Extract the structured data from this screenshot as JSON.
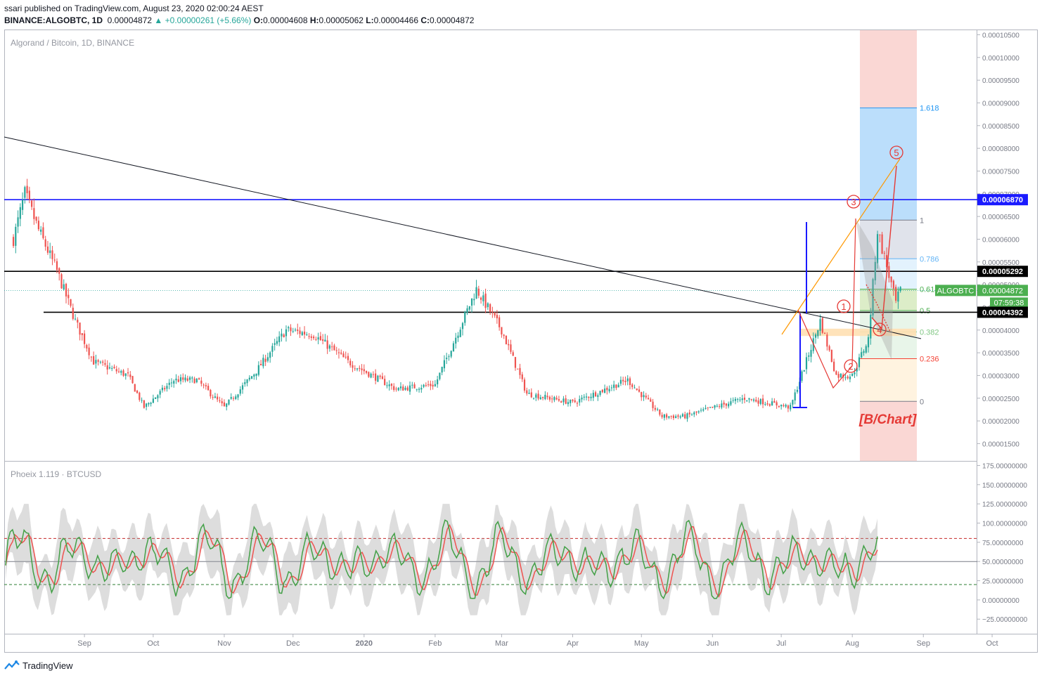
{
  "header": {
    "published": "ssari published on TradingView.com, August 23, 2020 02:00:24 AEST",
    "symbol": "BINANCE:ALGOBTC, 1D",
    "last": "0.00004872",
    "change": "▲ +0.00000261 (+5.66%)",
    "open_label": "O:",
    "open": "0.00004608",
    "high_label": "H:",
    "high": "0.00005062",
    "low_label": "L:",
    "low": "0.00004466",
    "close_label": "C:",
    "close": "0.00004872"
  },
  "main_pane": {
    "legend": "Algorand / Bitcoin, 1D, BINANCE"
  },
  "indicator_pane": {
    "legend": "Phoeix 1.119 · BTCUSD"
  },
  "footer": {
    "brand": "TradingView"
  },
  "colors": {
    "up": "#26a69a",
    "down": "#ef5350",
    "blue_level": "#1a1aff",
    "fib_blue": "#bbdefb",
    "fib_red": "#f8c9c6"
  },
  "chart_data": [
    {
      "type": "candlestick",
      "title": "Algorand / Bitcoin, 1D, BINANCE",
      "x_axis_labels": [
        "Sep",
        "Oct",
        "Nov",
        "Dec",
        "2020",
        "Feb",
        "Mar",
        "Apr",
        "May",
        "Jun",
        "Jul",
        "Aug",
        "Sep",
        "Oct"
      ],
      "y_axis_labels": [
        "0.00010500",
        "0.00010000",
        "0.00009500",
        "0.00009000",
        "0.00008500",
        "0.00008000",
        "0.00007500",
        "0.00007000",
        "0.00006500",
        "0.00006000",
        "0.00005500",
        "0.00005000",
        "0.00004500",
        "0.00004000",
        "0.00003500",
        "0.00003000",
        "0.00002500",
        "0.00002000",
        "0.00001500"
      ],
      "ylim": [
        1.12e-05,
        0.000106
      ],
      "price_tags": [
        {
          "name": "blue-level",
          "value": 6.87e-05,
          "label": "0.00006870"
        },
        {
          "name": "resistance",
          "value": 5.292e-05,
          "label": "0.00005292"
        },
        {
          "name": "last-price",
          "value": 4.872e-05,
          "symbol": "ALGOBTC",
          "label": "0.00004872",
          "countdown": "07:59:38"
        },
        {
          "name": "support",
          "value": 4.392e-05,
          "label": "0.00004392"
        }
      ],
      "fib_levels": [
        {
          "label": "1.618",
          "value": 8.89e-05
        },
        {
          "label": "1",
          "value": 6.42e-05
        },
        {
          "label": "0.786",
          "value": 5.57e-05
        },
        {
          "label": "0.618",
          "value": 4.9e-05
        },
        {
          "label": "0.5",
          "value": 4.43e-05
        },
        {
          "label": "0.382",
          "value": 3.96e-05
        },
        {
          "label": "0.236",
          "value": 3.37e-05
        },
        {
          "label": "0",
          "value": 2.43e-05
        }
      ],
      "wave_labels": [
        "1",
        "2",
        "3",
        "4",
        "5"
      ],
      "watermark": "[B/Chart]",
      "series_close_approx": [
        {
          "date": "2019-08-01",
          "close": 6e-05
        },
        {
          "date": "2019-08-06",
          "close": 7e-05
        },
        {
          "date": "2019-08-12",
          "close": 6.2e-05
        },
        {
          "date": "2019-08-20",
          "close": 5.3e-05
        },
        {
          "date": "2019-08-28",
          "close": 4.2e-05
        },
        {
          "date": "2019-09-05",
          "close": 3.3e-05
        },
        {
          "date": "2019-09-20",
          "close": 3e-05
        },
        {
          "date": "2019-09-27",
          "close": 2.3e-05
        },
        {
          "date": "2019-10-10",
          "close": 2.9e-05
        },
        {
          "date": "2019-10-20",
          "close": 2.9e-05
        },
        {
          "date": "2019-11-01",
          "close": 2.3e-05
        },
        {
          "date": "2019-11-15",
          "close": 3.1e-05
        },
        {
          "date": "2019-11-28",
          "close": 4e-05
        },
        {
          "date": "2019-12-10",
          "close": 3.9e-05
        },
        {
          "date": "2019-12-25",
          "close": 3.3e-05
        },
        {
          "date": "2020-01-15",
          "close": 2.7e-05
        },
        {
          "date": "2020-02-01",
          "close": 2.8e-05
        },
        {
          "date": "2020-02-19",
          "close": 4.9e-05
        },
        {
          "date": "2020-03-01",
          "close": 4e-05
        },
        {
          "date": "2020-03-12",
          "close": 2.6e-05
        },
        {
          "date": "2020-04-01",
          "close": 2.4e-05
        },
        {
          "date": "2020-04-25",
          "close": 2.9e-05
        },
        {
          "date": "2020-05-10",
          "close": 2.1e-05
        },
        {
          "date": "2020-05-20",
          "close": 2.1e-05
        },
        {
          "date": "2020-06-15",
          "close": 2.5e-05
        },
        {
          "date": "2020-07-05",
          "close": 2.3e-05
        },
        {
          "date": "2020-07-18",
          "close": 4.2e-05
        },
        {
          "date": "2020-07-25",
          "close": 3e-05
        },
        {
          "date": "2020-08-01",
          "close": 3e-05
        },
        {
          "date": "2020-08-08",
          "close": 3.8e-05
        },
        {
          "date": "2020-08-12",
          "close": 6.2e-05
        },
        {
          "date": "2020-08-20",
          "close": 4.6e-05
        },
        {
          "date": "2020-08-22",
          "close": 4.87e-05
        }
      ]
    },
    {
      "type": "line",
      "title": "Phoeix 1.119 · BTCUSD",
      "y_axis_labels": [
        "175.00000000",
        "150.00000000",
        "125.00000000",
        "100.00000000",
        "75.00000000",
        "50.00000000",
        "25.00000000",
        "0.00000000",
        "−25.00000000"
      ],
      "ylim": [
        -44,
        180
      ],
      "reference_lines": [
        80,
        50,
        20
      ]
    }
  ]
}
